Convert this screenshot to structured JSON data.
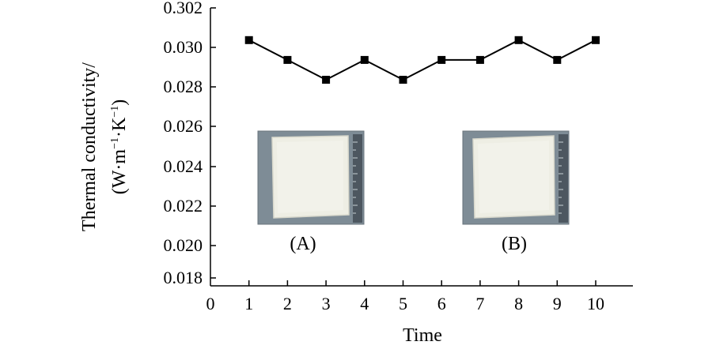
{
  "chart_data": {
    "type": "line",
    "x": [
      1,
      2,
      3,
      4,
      5,
      6,
      7,
      8,
      9,
      10
    ],
    "series": [
      {
        "values": [
          0.03,
          0.029,
          0.028,
          0.029,
          0.028,
          0.029,
          0.029,
          0.03,
          0.029,
          0.03
        ]
      }
    ],
    "xlabel": "Time",
    "ylabel_line1": "Thermal conductivity/",
    "ylabel_line2_parts": [
      "(W·m",
      "−1",
      "·K",
      "−1",
      ")"
    ],
    "xlim": [
      0,
      11
    ],
    "ylim": [
      0.018,
      0.302
    ],
    "xticks": [
      "0",
      "1",
      "2",
      "3",
      "4",
      "5",
      "6",
      "7",
      "8",
      "9",
      "10"
    ],
    "yticks": [
      "0.018",
      "0.020",
      "0.022",
      "0.024",
      "0.026",
      "0.028",
      "0.030",
      "0.302"
    ],
    "grid": false,
    "legend": "none",
    "marker": "square",
    "line_color": "#000000",
    "insets": [
      {
        "label": "(A)",
        "content": "photo of white square thermal insulation board with ruler"
      },
      {
        "label": "(B)",
        "content": "photo of white square thermal insulation board with ruler"
      }
    ]
  }
}
